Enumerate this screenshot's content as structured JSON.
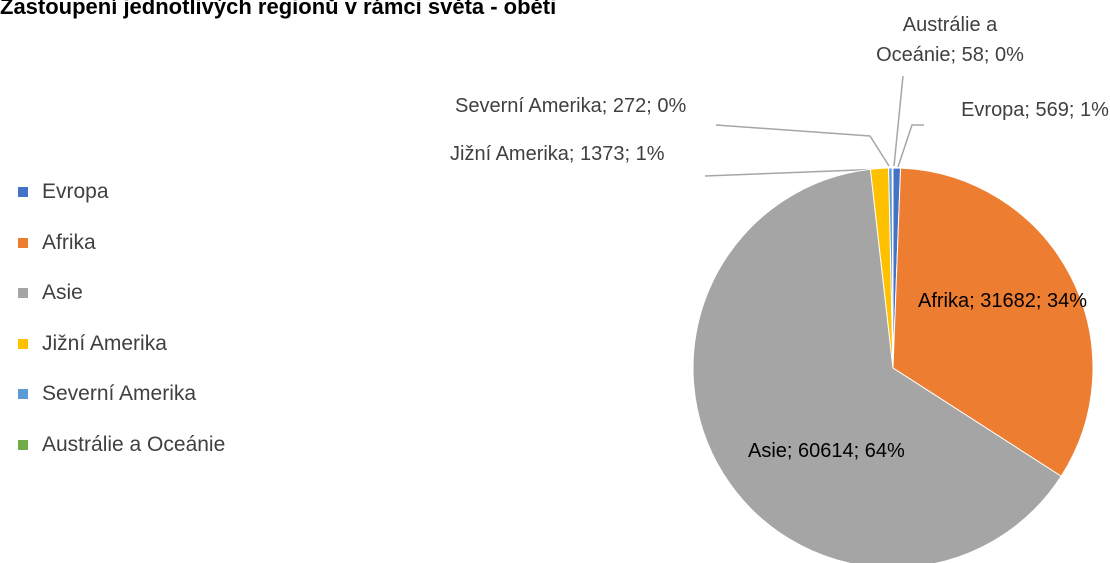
{
  "chart_data": {
    "type": "pie",
    "title": "Zastoupení jednotlivých regionů v rámci světa - oběti",
    "categories": [
      "Evropa",
      "Afrika",
      "Asie",
      "Jižní Amerika",
      "Severní Amerika",
      "Austrálie a Oceánie"
    ],
    "values": [
      569,
      31682,
      60614,
      1373,
      272,
      58
    ],
    "value_labels": [
      "Evropa; 569; 1%",
      "Afrika; 31682; 34%",
      "Asie; 60614; 64%",
      "Jižní Amerika; 1373; 1%",
      "Severní Amerika; 272; 0%",
      "Austrálie a Oceánie; 58; 0%"
    ],
    "colors": [
      "#4472c4",
      "#ed7d31",
      "#a5a5a5",
      "#ffc000",
      "#5b9bd5",
      "#70ad47"
    ],
    "legend": "left"
  }
}
